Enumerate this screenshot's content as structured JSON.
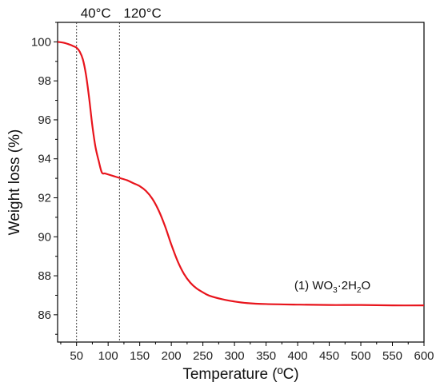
{
  "chart_data": {
    "type": "line",
    "xlabel": "Temperature (ºC)",
    "ylabel": "Weight loss (%)",
    "xlim": [
      20,
      600
    ],
    "ylim": [
      84.6,
      101
    ],
    "xticks": [
      50,
      100,
      150,
      200,
      250,
      300,
      350,
      400,
      450,
      500,
      550,
      600
    ],
    "yticks": [
      86,
      88,
      90,
      92,
      94,
      96,
      98,
      100
    ],
    "grid": false,
    "legend": "none",
    "series": [
      {
        "name": "(1) WO3·2H2O",
        "color": "#e8141c",
        "x": [
          20,
          30,
          40,
          45,
          50,
          55,
          60,
          65,
          70,
          75,
          80,
          85,
          90,
          95,
          100,
          110,
          120,
          130,
          140,
          150,
          160,
          170,
          180,
          190,
          200,
          210,
          220,
          230,
          240,
          250,
          260,
          280,
          300,
          320,
          350,
          400,
          450,
          500,
          550,
          600
        ],
        "y": [
          100.0,
          99.95,
          99.85,
          99.78,
          99.7,
          99.5,
          99.1,
          98.3,
          97.1,
          95.7,
          94.6,
          93.9,
          93.3,
          93.25,
          93.2,
          93.1,
          93.0,
          92.9,
          92.75,
          92.6,
          92.35,
          91.95,
          91.35,
          90.55,
          89.6,
          88.75,
          88.1,
          87.65,
          87.35,
          87.15,
          86.98,
          86.8,
          86.68,
          86.6,
          86.55,
          86.52,
          86.5,
          86.5,
          86.48,
          86.48
        ]
      }
    ],
    "annotations": [
      {
        "text": "40°C",
        "x": 50,
        "style": "dotted-vline"
      },
      {
        "text": "120°C",
        "x": 118,
        "style": "dotted-vline"
      }
    ],
    "series_label": {
      "prefix": "(1) WO",
      "sub1": "3",
      "middle": "·2H",
      "sub2": "2",
      "suffix": "O",
      "x": 455,
      "y": 87.3
    }
  }
}
